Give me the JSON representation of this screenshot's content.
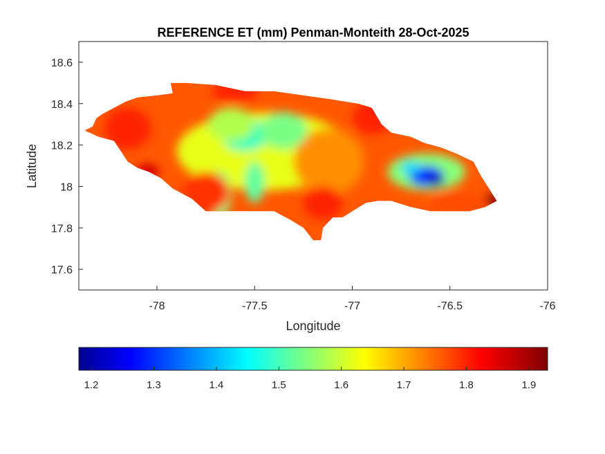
{
  "map": {
    "title": "REFERENCE ET (mm) Penman-Monteith 28-Oct-2025",
    "xlabel": "Longitude",
    "ylabel": "Latitude",
    "xlim": [
      -78.4,
      -76.0
    ],
    "ylim": [
      17.5,
      18.7
    ],
    "x_ticks": [
      {
        "value": -78,
        "label": "-78"
      },
      {
        "value": -77.5,
        "label": "-77.5"
      },
      {
        "value": -77,
        "label": "-77"
      },
      {
        "value": -76.5,
        "label": "-76.5"
      },
      {
        "value": -76,
        "label": "-76"
      }
    ],
    "y_ticks": [
      {
        "value": 18.6,
        "label": "18.6"
      },
      {
        "value": 18.4,
        "label": "18.4"
      },
      {
        "value": 18.2,
        "label": "18.2"
      },
      {
        "value": 18,
        "label": "18"
      },
      {
        "value": 17.8,
        "label": "17.8"
      },
      {
        "value": 17.6,
        "label": "17.6"
      }
    ],
    "outline_lonlat": [
      [
        -78.37,
        18.27
      ],
      [
        -78.33,
        18.29
      ],
      [
        -78.31,
        18.33
      ],
      [
        -78.28,
        18.35
      ],
      [
        -78.22,
        18.38
      ],
      [
        -78.16,
        18.41
      ],
      [
        -78.1,
        18.43
      ],
      [
        -78.0,
        18.44
      ],
      [
        -77.92,
        18.45
      ],
      [
        -77.93,
        18.5
      ],
      [
        -77.85,
        18.5
      ],
      [
        -77.7,
        18.49
      ],
      [
        -77.55,
        18.46
      ],
      [
        -77.4,
        18.46
      ],
      [
        -77.25,
        18.44
      ],
      [
        -77.1,
        18.42
      ],
      [
        -76.97,
        18.4
      ],
      [
        -76.9,
        18.38
      ],
      [
        -76.85,
        18.3
      ],
      [
        -76.8,
        18.26
      ],
      [
        -76.7,
        18.24
      ],
      [
        -76.63,
        18.21
      ],
      [
        -76.55,
        18.19
      ],
      [
        -76.47,
        18.16
      ],
      [
        -76.38,
        18.12
      ],
      [
        -76.34,
        18.05
      ],
      [
        -76.3,
        17.99
      ],
      [
        -76.26,
        17.93
      ],
      [
        -76.32,
        17.9
      ],
      [
        -76.4,
        17.88
      ],
      [
        -76.5,
        17.88
      ],
      [
        -76.6,
        17.88
      ],
      [
        -76.7,
        17.9
      ],
      [
        -76.8,
        17.93
      ],
      [
        -76.87,
        17.93
      ],
      [
        -76.93,
        17.92
      ],
      [
        -77.0,
        17.88
      ],
      [
        -77.05,
        17.85
      ],
      [
        -77.1,
        17.85
      ],
      [
        -77.15,
        17.8
      ],
      [
        -77.16,
        17.74
      ],
      [
        -77.2,
        17.74
      ],
      [
        -77.25,
        17.8
      ],
      [
        -77.32,
        17.84
      ],
      [
        -77.4,
        17.88
      ],
      [
        -77.5,
        17.88
      ],
      [
        -77.65,
        17.88
      ],
      [
        -77.75,
        17.88
      ],
      [
        -77.82,
        17.94
      ],
      [
        -77.92,
        17.99
      ],
      [
        -77.98,
        18.04
      ],
      [
        -78.04,
        18.07
      ],
      [
        -78.1,
        18.09
      ],
      [
        -78.15,
        18.12
      ],
      [
        -78.22,
        18.22
      ],
      [
        -78.3,
        18.24
      ]
    ],
    "regions": [
      {
        "lon": -77.45,
        "lat": 18.17,
        "rlon": 0.45,
        "rlat": 0.19,
        "value": 1.62
      },
      {
        "lon": -77.12,
        "lat": 18.12,
        "rlon": 0.18,
        "rlat": 0.16,
        "value": 1.72
      },
      {
        "lon": -77.55,
        "lat": 18.25,
        "rlon": 0.12,
        "rlat": 0.08,
        "value": 1.5
      },
      {
        "lon": -77.35,
        "lat": 18.27,
        "rlon": 0.12,
        "rlat": 0.09,
        "value": 1.54
      },
      {
        "lon": -77.62,
        "lat": 18.3,
        "rlon": 0.12,
        "rlat": 0.08,
        "value": 1.58
      },
      {
        "lon": -77.68,
        "lat": 17.96,
        "rlon": 0.06,
        "rlat": 0.11,
        "value": 1.54
      },
      {
        "lon": -77.5,
        "lat": 18.02,
        "rlon": 0.05,
        "rlat": 0.1,
        "value": 1.52
      },
      {
        "lon": -76.62,
        "lat": 18.07,
        "rlon": 0.2,
        "rlat": 0.09,
        "value": 1.55
      },
      {
        "lon": -76.62,
        "lat": 18.05,
        "rlon": 0.09,
        "rlat": 0.05,
        "value": 1.3
      },
      {
        "lon": -76.57,
        "lat": 18.03,
        "rlon": 0.04,
        "rlat": 0.03,
        "value": 1.2
      },
      {
        "lon": -76.7,
        "lat": 18.09,
        "rlon": 0.05,
        "rlat": 0.03,
        "value": 1.42
      },
      {
        "lon": -76.28,
        "lat": 17.93,
        "rlon": 0.05,
        "rlat": 0.04,
        "value": 1.92
      },
      {
        "lon": -78.15,
        "lat": 18.28,
        "rlon": 0.12,
        "rlat": 0.1,
        "value": 1.8
      },
      {
        "lon": -77.75,
        "lat": 17.97,
        "rlon": 0.12,
        "rlat": 0.1,
        "value": 1.79
      },
      {
        "lon": -77.15,
        "lat": 17.92,
        "rlon": 0.1,
        "rlat": 0.08,
        "value": 1.8
      },
      {
        "lon": -76.9,
        "lat": 18.33,
        "rlon": 0.1,
        "rlat": 0.08,
        "value": 1.8
      },
      {
        "lon": -77.6,
        "lat": 18.46,
        "rlon": 0.12,
        "rlat": 0.05,
        "value": 1.8
      },
      {
        "lon": -78.05,
        "lat": 18.07,
        "rlon": 0.06,
        "rlat": 0.04,
        "value": 1.86
      },
      {
        "lon": -76.45,
        "lat": 17.92,
        "rlon": 0.15,
        "rlat": 0.05,
        "value": 1.77
      }
    ],
    "background_value": 1.76
  },
  "colorbar": {
    "colormap": "jet",
    "min": 1.18,
    "max": 1.93,
    "ticks": [
      {
        "value": 1.2,
        "label": "1.2"
      },
      {
        "value": 1.3,
        "label": "1.3"
      },
      {
        "value": 1.4,
        "label": "1.4"
      },
      {
        "value": 1.5,
        "label": "1.5"
      },
      {
        "value": 1.6,
        "label": "1.6"
      },
      {
        "value": 1.7,
        "label": "1.7"
      },
      {
        "value": 1.8,
        "label": "1.8"
      },
      {
        "value": 1.9,
        "label": "1.9"
      }
    ]
  }
}
